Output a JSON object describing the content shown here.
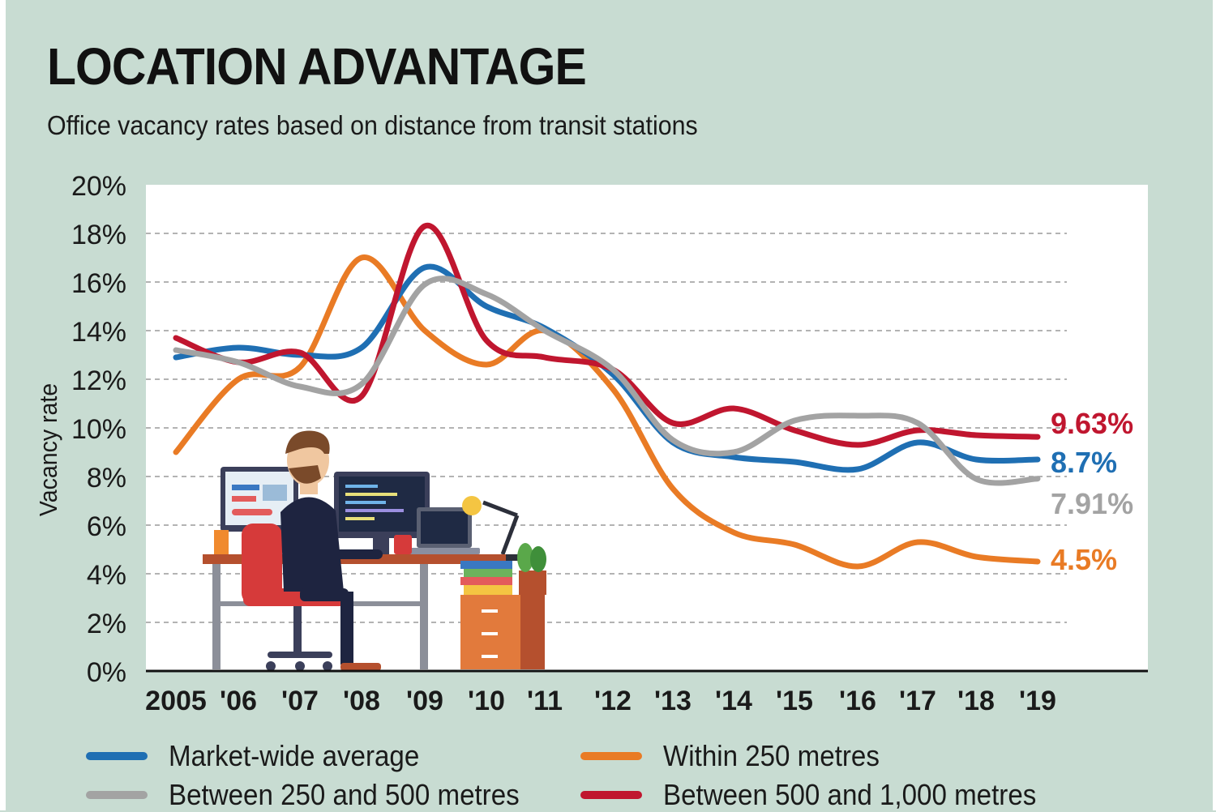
{
  "title": "LOCATION ADVANTAGE",
  "subtitle": "Office vacancy rates based on distance from transit stations",
  "chart_data": {
    "type": "line",
    "title": "LOCATION ADVANTAGE",
    "subtitle": "Office vacancy rates based on distance from transit stations",
    "xlabel": "",
    "ylabel": "Vacancy rate",
    "ylim": [
      0,
      20
    ],
    "y_ticks": [
      "0%",
      "2%",
      "4%",
      "6%",
      "8%",
      "10%",
      "12%",
      "14%",
      "16%",
      "18%",
      "20%"
    ],
    "categories": [
      "2005",
      "'06",
      "'07",
      "'08",
      "'09",
      "'10",
      "'11",
      "'12",
      "'13",
      "'14",
      "'15",
      "'16",
      "'17",
      "'18",
      "'19"
    ],
    "grid": true,
    "legend_position": "bottom",
    "series": [
      {
        "name": "Market-wide average",
        "color": "#1f6fb3",
        "values": [
          12.9,
          13.3,
          13.0,
          13.3,
          16.6,
          15.0,
          14.1,
          12.2,
          9.4,
          8.8,
          8.6,
          8.3,
          9.4,
          8.7,
          8.7
        ],
        "end_label": "8.7%"
      },
      {
        "name": "Within 250 metres",
        "color": "#e97b25",
        "values": [
          9.0,
          12.0,
          12.5,
          17.0,
          14.0,
          12.6,
          14.0,
          11.6,
          7.5,
          5.7,
          5.2,
          4.3,
          5.3,
          4.7,
          4.5
        ],
        "end_label": "4.5%"
      },
      {
        "name": "Between 250 and 500 metres",
        "color": "#a3a3a3",
        "values": [
          13.2,
          12.7,
          11.7,
          11.8,
          15.9,
          15.5,
          14.0,
          12.4,
          9.5,
          9.0,
          10.3,
          10.5,
          10.2,
          7.9,
          7.91
        ],
        "end_label": "7.91%"
      },
      {
        "name": "Between 500 and 1,000 metres",
        "color": "#c0162f",
        "values": [
          13.7,
          12.7,
          13.1,
          11.3,
          18.3,
          13.6,
          12.9,
          12.4,
          10.2,
          10.8,
          9.9,
          9.3,
          9.9,
          9.7,
          9.63
        ],
        "end_label": "9.63%"
      }
    ]
  }
}
